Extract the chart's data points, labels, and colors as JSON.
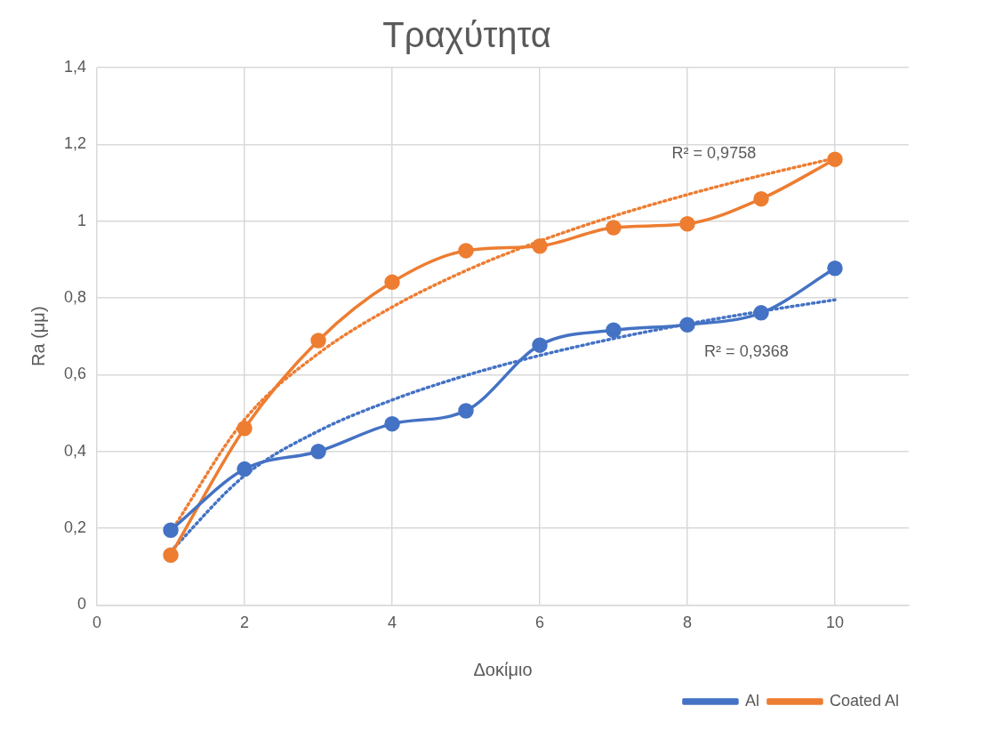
{
  "chart_data": {
    "type": "line",
    "title": "Τραχύτητα",
    "xlabel": "Δοκίμιο",
    "ylabel": "Ra (μμ)",
    "x": [
      1,
      2,
      3,
      4,
      5,
      6,
      7,
      8,
      9,
      10
    ],
    "series": [
      {
        "name": "Al",
        "color": "#4472c4",
        "values": [
          0.195,
          0.354,
          0.4,
          0.472,
          0.506,
          0.677,
          0.716,
          0.73,
          0.761,
          0.877
        ],
        "marker": "circle",
        "line_style": "solid"
      },
      {
        "name": "Coated Al",
        "color": "#ed7d31",
        "values": [
          0.13,
          0.46,
          0.689,
          0.841,
          0.923,
          0.935,
          0.983,
          0.993,
          1.058,
          1.161
        ],
        "marker": "circle",
        "line_style": "solid"
      },
      {
        "color": "#4472c4",
        "x": [
          1,
          2,
          3,
          4,
          5,
          6,
          7,
          8,
          9,
          10
        ],
        "values": [
          0.14,
          0.337,
          0.453,
          0.534,
          0.598,
          0.65,
          0.694,
          0.732,
          0.765,
          0.795
        ],
        "marker": "none",
        "line_style": "dotted"
      },
      {
        "color": "#ed7d31",
        "x": [
          1,
          2,
          3,
          4,
          5,
          6,
          7,
          8,
          9,
          10
        ],
        "values": [
          0.19,
          0.483,
          0.655,
          0.776,
          0.871,
          0.948,
          1.013,
          1.069,
          1.119,
          1.164
        ],
        "marker": "none",
        "line_style": "dotted"
      }
    ],
    "xlim": [
      0,
      11
    ],
    "xticks": [
      0,
      2,
      4,
      6,
      8,
      10
    ],
    "ylim": [
      0,
      1.4
    ],
    "yticks": [
      0,
      {
        "value": 0.2,
        "label": "0,2"
      },
      {
        "value": 0.4,
        "label": "0,4"
      },
      {
        "value": 0.6,
        "label": "0,6"
      },
      {
        "value": 0.8,
        "label": "0,8"
      },
      1,
      {
        "value": 1.2,
        "label": "1,2"
      },
      {
        "value": 1.4,
        "label": "1,4"
      }
    ],
    "annotations": [
      "R² = 0,9758",
      "R² = 0,9368"
    ],
    "grid": true,
    "legend": "bottom right"
  }
}
